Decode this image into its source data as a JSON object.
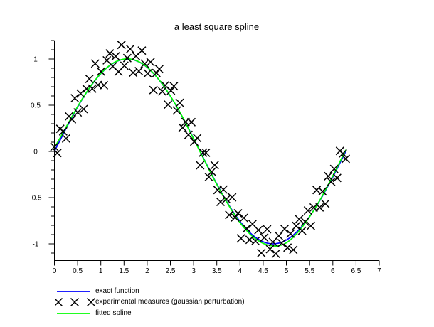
{
  "chart_data": {
    "type": "line",
    "title": "a least square spline",
    "xlabel": "",
    "ylabel": "",
    "xlim": [
      0,
      7
    ],
    "ylim": [
      -1.18,
      1.2
    ],
    "grid": false,
    "legend_position": "bottom-left",
    "axis_color": "#000000",
    "background_color": "#ffffff",
    "x_tick_values": [
      0,
      0.5,
      1,
      1.5,
      2,
      2.5,
      3,
      3.5,
      4,
      4.5,
      5,
      5.5,
      6,
      6.5,
      7
    ],
    "x_tick_labels": [
      "0",
      "0.5",
      "1",
      "1.5",
      "2",
      "2.5",
      "3",
      "3.5",
      "4",
      "4.5",
      "5",
      "5.5",
      "6",
      "6.5",
      "7"
    ],
    "y_tick_values": [
      -1,
      -0.5,
      0,
      0.5,
      1
    ],
    "y_tick_labels": [
      "-1",
      "-0.5",
      "0",
      "0.5",
      "1"
    ],
    "y_minor_tick_values": [
      -1.1,
      -0.9,
      -0.8,
      -0.7,
      -0.6,
      -0.4,
      -0.3,
      -0.2,
      -0.1,
      0.1,
      0.2,
      0.3,
      0.4,
      0.6,
      0.7,
      0.8,
      0.9,
      1.1,
      1.2
    ],
    "x": [
      0.0,
      0.063,
      0.126,
      0.188,
      0.251,
      0.314,
      0.377,
      0.44,
      0.502,
      0.565,
      0.628,
      0.691,
      0.754,
      0.816,
      0.879,
      0.942,
      1.005,
      1.068,
      1.13,
      1.193,
      1.256,
      1.319,
      1.382,
      1.444,
      1.507,
      1.57,
      1.633,
      1.696,
      1.758,
      1.821,
      1.884,
      1.947,
      2.01,
      2.072,
      2.135,
      2.198,
      2.261,
      2.324,
      2.386,
      2.449,
      2.512,
      2.575,
      2.638,
      2.7,
      2.763,
      2.826,
      2.889,
      2.952,
      3.014,
      3.077,
      3.14,
      3.203,
      3.266,
      3.328,
      3.391,
      3.454,
      3.517,
      3.58,
      3.642,
      3.705,
      3.768,
      3.831,
      3.894,
      3.956,
      4.019,
      4.082,
      4.145,
      4.208,
      4.27,
      4.333,
      4.396,
      4.459,
      4.522,
      4.584,
      4.647,
      4.71,
      4.773,
      4.836,
      4.898,
      4.961,
      5.024,
      5.087,
      5.15,
      5.212,
      5.275,
      5.338,
      5.401,
      5.464,
      5.526,
      5.589,
      5.652,
      5.715,
      5.778,
      5.84,
      5.903,
      5.966,
      6.029,
      6.092,
      6.154,
      6.217,
      6.28
    ],
    "series": [
      {
        "name": "exact function",
        "type": "line",
        "color": "#0000ff",
        "y": [
          0,
          0.063,
          0.125,
          0.187,
          0.249,
          0.309,
          0.368,
          0.426,
          0.482,
          0.536,
          0.588,
          0.637,
          0.685,
          0.729,
          0.771,
          0.809,
          0.844,
          0.876,
          0.905,
          0.93,
          0.951,
          0.969,
          0.982,
          0.992,
          0.998,
          1,
          0.998,
          0.992,
          0.982,
          0.969,
          0.951,
          0.93,
          0.905,
          0.876,
          0.844,
          0.809,
          0.771,
          0.729,
          0.685,
          0.637,
          0.588,
          0.536,
          0.482,
          0.426,
          0.368,
          0.309,
          0.249,
          0.187,
          0.125,
          0.063,
          0,
          -0.063,
          -0.125,
          -0.187,
          -0.249,
          -0.309,
          -0.368,
          -0.426,
          -0.482,
          -0.536,
          -0.588,
          -0.637,
          -0.685,
          -0.729,
          -0.771,
          -0.809,
          -0.844,
          -0.876,
          -0.905,
          -0.93,
          -0.951,
          -0.969,
          -0.982,
          -0.992,
          -0.998,
          -1,
          -0.998,
          -0.992,
          -0.982,
          -0.969,
          -0.951,
          -0.93,
          -0.905,
          -0.876,
          -0.844,
          -0.809,
          -0.771,
          -0.729,
          -0.685,
          -0.637,
          -0.588,
          -0.536,
          -0.482,
          -0.426,
          -0.368,
          -0.309,
          -0.249,
          -0.187,
          -0.125,
          -0.063,
          0
        ]
      },
      {
        "name": "experimental measures (gaussian perturbation)",
        "type": "scatter",
        "marker": "x",
        "color": "#000000",
        "y": [
          0.05,
          -0.017,
          0.245,
          0.217,
          0.139,
          0.379,
          0.348,
          0.576,
          0.422,
          0.626,
          0.458,
          0.677,
          0.785,
          0.679,
          0.951,
          0.719,
          0.864,
          0.716,
          0.985,
          1.06,
          0.921,
          1.029,
          0.862,
          1.152,
          0.928,
          1.01,
          1.108,
          0.852,
          1.032,
          0.869,
          1.091,
          0.95,
          0.845,
          0.966,
          0.664,
          0.849,
          0.891,
          0.649,
          0.715,
          0.507,
          0.658,
          0.706,
          0.442,
          0.526,
          0.258,
          0.319,
          0.179,
          0.317,
          0.105,
          0.143,
          -0.15,
          -0.013,
          -0.015,
          -0.277,
          -0.219,
          -0.149,
          -0.418,
          -0.546,
          -0.412,
          -0.516,
          -0.688,
          -0.497,
          -0.715,
          -0.669,
          -0.941,
          -0.719,
          -0.834,
          -0.956,
          -0.785,
          -0.97,
          -0.851,
          -1.099,
          -0.932,
          -0.842,
          -1.058,
          -0.98,
          -1.108,
          -0.912,
          -0.992,
          -0.839,
          -1.041,
          -0.89,
          -1.065,
          -0.806,
          -0.734,
          -0.859,
          -0.761,
          -0.639,
          -0.805,
          -0.607,
          -0.418,
          -0.606,
          -0.432,
          -0.566,
          -0.268,
          -0.329,
          -0.189,
          -0.287,
          0.005,
          -0.023,
          -0.08
        ]
      },
      {
        "name": "fitted spline",
        "type": "line",
        "color": "#00ff00",
        "y": [
          0.04,
          0.095,
          0.15,
          0.207,
          0.265,
          0.32,
          0.377,
          0.433,
          0.488,
          0.541,
          0.592,
          0.639,
          0.687,
          0.731,
          0.773,
          0.811,
          0.846,
          0.878,
          0.907,
          0.932,
          0.953,
          0.971,
          0.984,
          0.994,
          1,
          1.002,
          1,
          0.994,
          0.984,
          0.971,
          0.953,
          0.932,
          0.907,
          0.878,
          0.846,
          0.811,
          0.773,
          0.731,
          0.687,
          0.639,
          0.59,
          0.538,
          0.484,
          0.428,
          0.37,
          0.311,
          0.244,
          0.182,
          0.12,
          0.058,
          -0.005,
          -0.068,
          -0.13,
          -0.192,
          -0.254,
          -0.314,
          -0.373,
          -0.431,
          -0.487,
          -0.541,
          -0.594,
          -0.645,
          -0.694,
          -0.74,
          -0.783,
          -0.822,
          -0.858,
          -0.891,
          -0.92,
          -0.945,
          -0.967,
          -0.985,
          -0.999,
          -1.01,
          -1.018,
          -1.023,
          -1.024,
          -1.021,
          -1.013,
          -1,
          -0.981,
          -0.956,
          -0.928,
          -0.895,
          -0.859,
          -0.82,
          -0.778,
          -0.733,
          -0.687,
          -0.638,
          -0.586,
          -0.532,
          -0.476,
          -0.418,
          -0.359,
          -0.298,
          -0.236,
          -0.173,
          -0.11,
          -0.046,
          0.018
        ]
      }
    ]
  }
}
